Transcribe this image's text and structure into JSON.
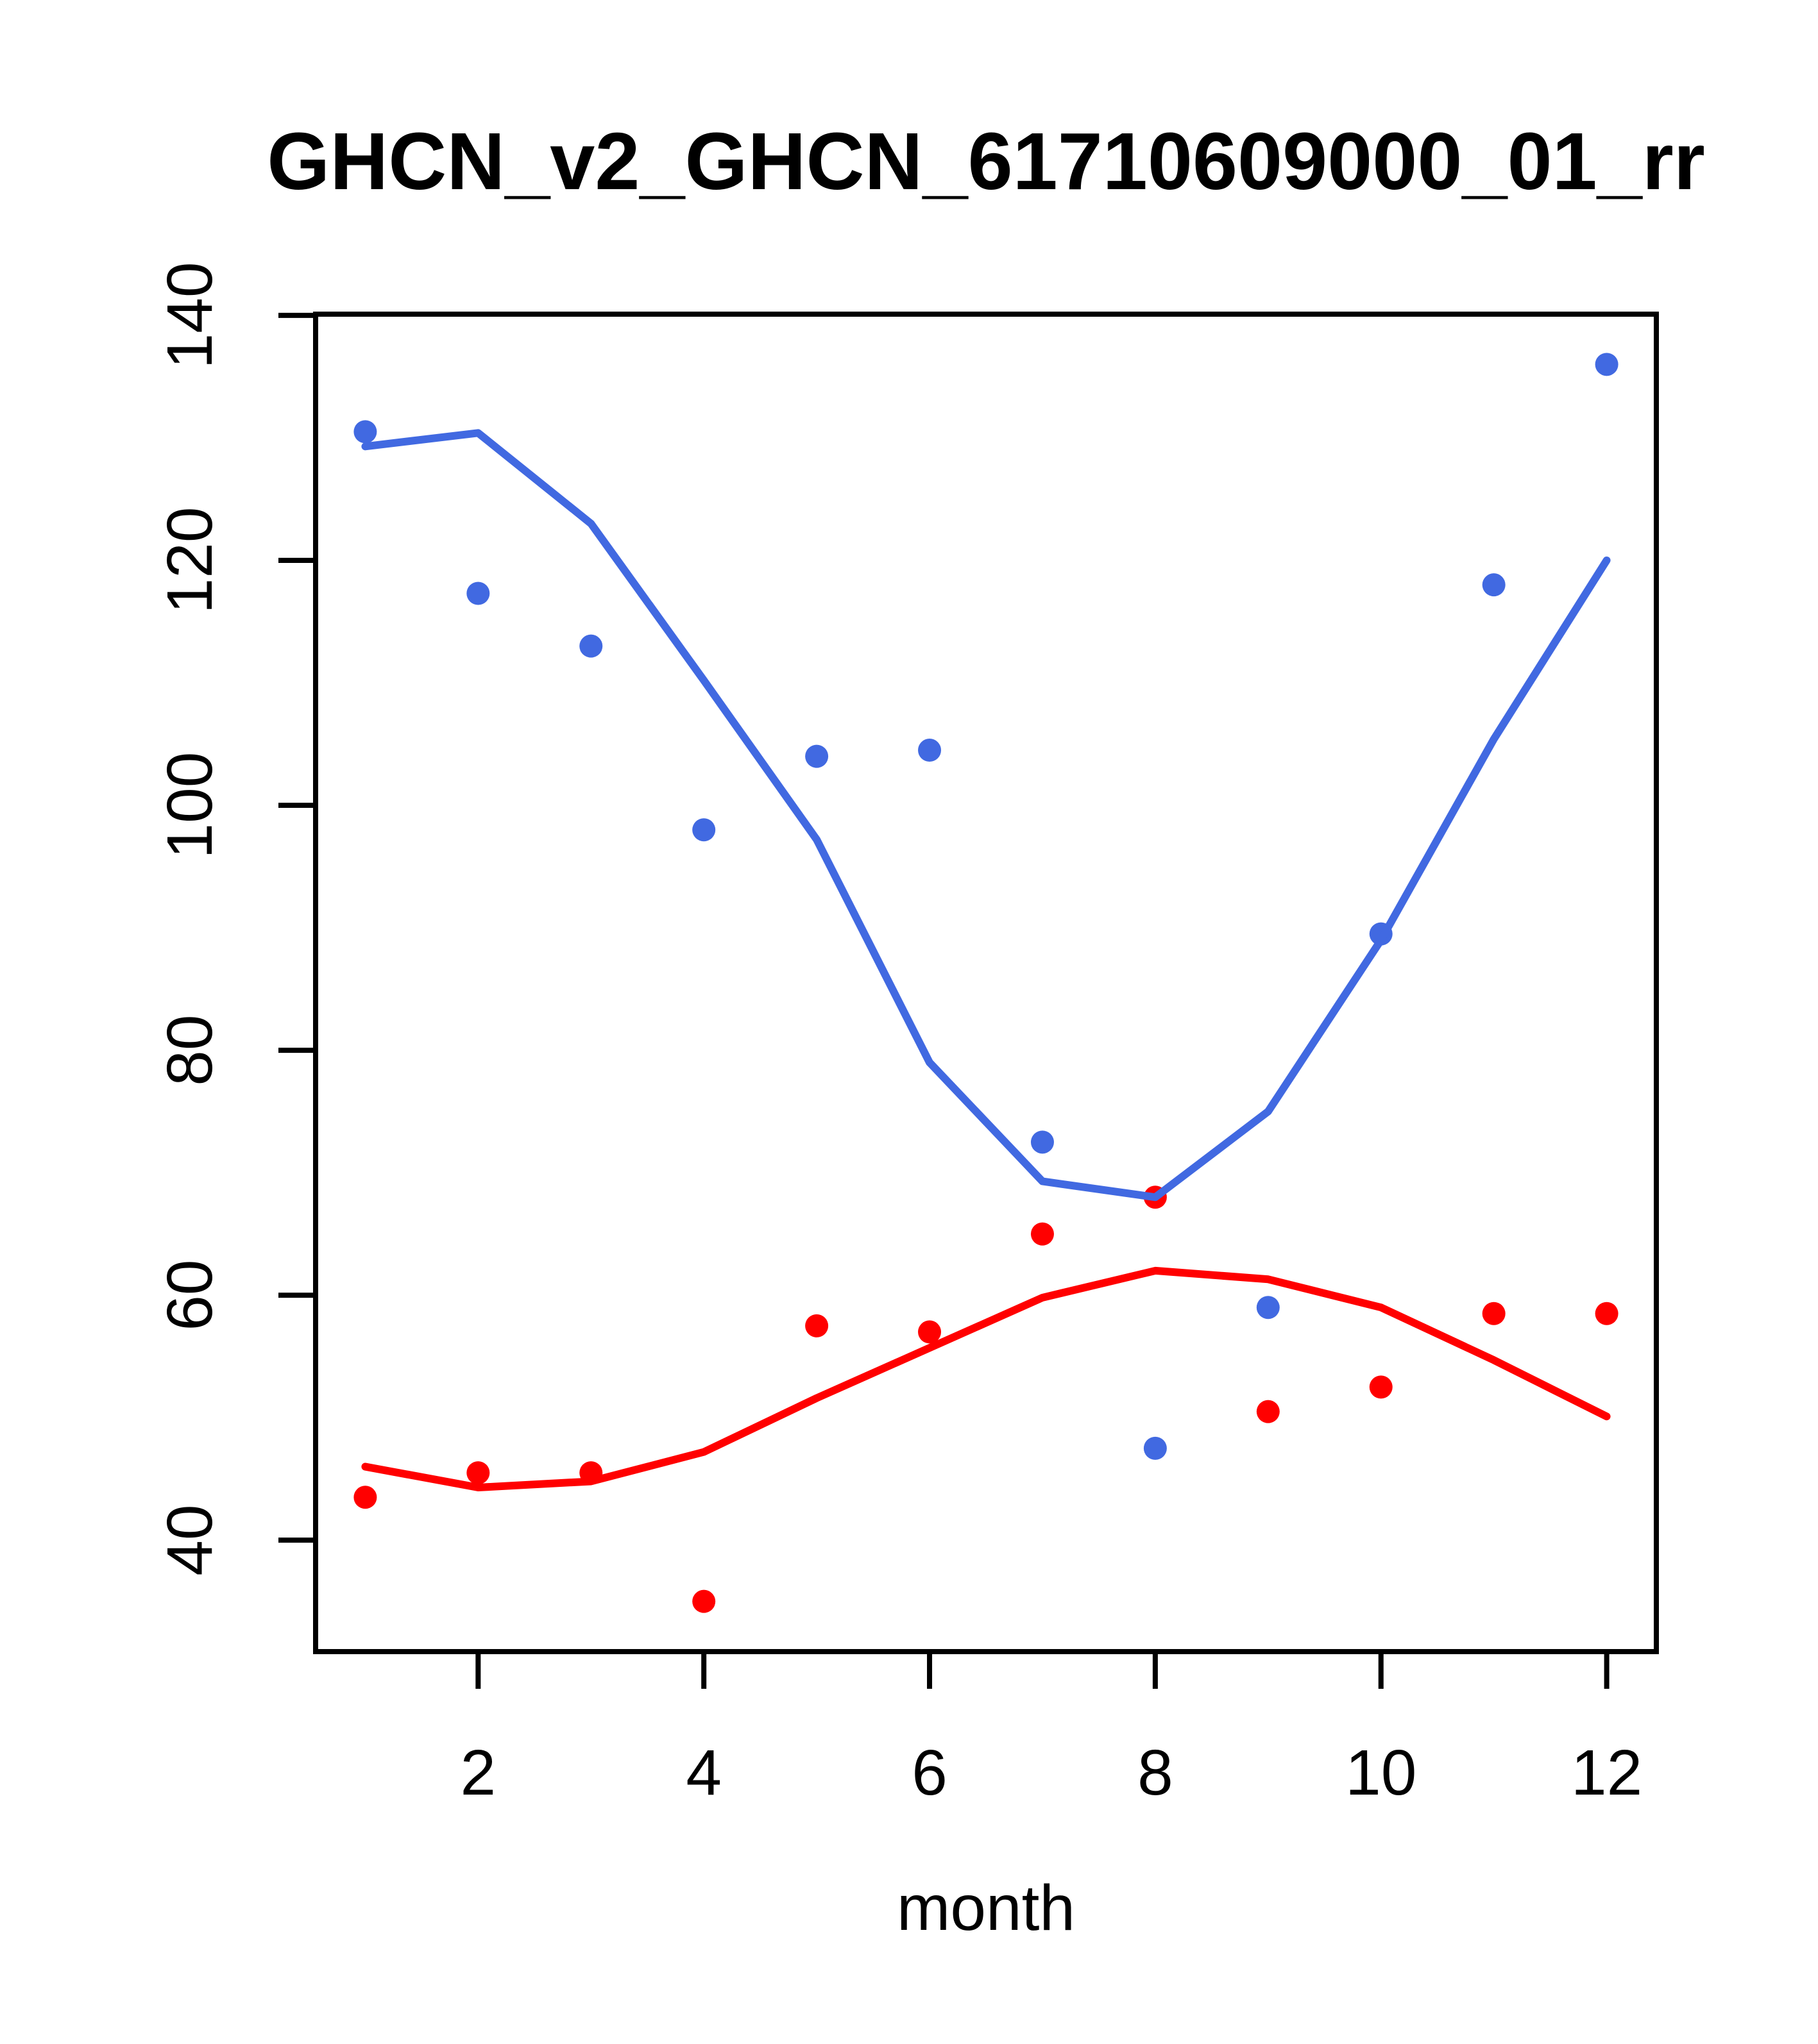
{
  "page": {
    "background": "#ffffff",
    "text_color": "#000000"
  },
  "chart_data": {
    "type": "scatter",
    "title": "GHCN_v2_GHCN_61710609000_01_rr",
    "xlabel": "month",
    "ylabel": "",
    "grid": false,
    "legend": null,
    "x": [
      1,
      2,
      3,
      4,
      5,
      6,
      7,
      8,
      9,
      10,
      11,
      12
    ],
    "x_ticks": [
      2,
      4,
      6,
      8,
      10,
      12
    ],
    "y_ticks": [
      40,
      60,
      80,
      100,
      120,
      140
    ],
    "xlim": [
      0.56,
      12.44
    ],
    "ylim": [
      30.9,
      140.1
    ],
    "series": [
      {
        "name": "series-blue-points",
        "style": "points",
        "color": "#4169e1",
        "values": [
          130.5,
          117.3,
          113,
          98,
          104,
          104.5,
          72.5,
          47.5,
          59,
          89.5,
          118,
          136
        ]
      },
      {
        "name": "series-red-points",
        "style": "points",
        "color": "#ff0000",
        "values": [
          43.5,
          45.5,
          45.5,
          35,
          57.5,
          57,
          65,
          68,
          50.5,
          52.5,
          58.5,
          58.5
        ]
      },
      {
        "name": "series-blue-lowess",
        "style": "line",
        "color": "#4169e1",
        "values": [
          129.3,
          130.4,
          123,
          110.2,
          97.2,
          79,
          69.3,
          68,
          75,
          89,
          105.4,
          120
        ]
      },
      {
        "name": "series-red-lowess",
        "style": "line",
        "color": "#ff0000",
        "values": [
          46,
          44.3,
          44.8,
          47.2,
          51.6,
          55.7,
          59.8,
          62,
          61.3,
          59,
          54.7,
          50.1
        ]
      }
    ]
  }
}
